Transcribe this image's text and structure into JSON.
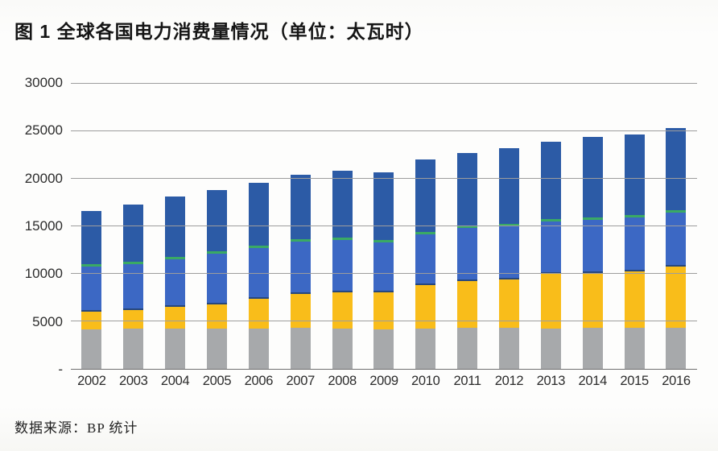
{
  "header": {
    "title": "图 1 全球各国电力消费量情况（单位：太瓦时）"
  },
  "footer": {
    "source": "数据来源：BP 统计"
  },
  "chart_data": {
    "type": "bar",
    "stacked": true,
    "title": "图 1 全球各国电力消费量情况",
    "unit": "太瓦时",
    "xlabel": "",
    "ylabel": "",
    "ylim": [
      0,
      30000
    ],
    "grid": true,
    "legend": "none",
    "categories": [
      "2002",
      "2003",
      "2004",
      "2005",
      "2006",
      "2007",
      "2008",
      "2009",
      "2010",
      "2011",
      "2012",
      "2013",
      "2014",
      "2015",
      "2016"
    ],
    "series": [
      {
        "name": "gray-bottom",
        "color": "#a7a9ab",
        "values": [
          4150,
          4250,
          4200,
          4250,
          4250,
          4300,
          4250,
          4100,
          4200,
          4300,
          4300,
          4250,
          4350,
          4350,
          4300
        ]
      },
      {
        "name": "yellow",
        "color": "#f9bd1a",
        "values": [
          1850,
          1950,
          2300,
          2550,
          3100,
          3600,
          3800,
          3950,
          4600,
          4950,
          5100,
          5700,
          5700,
          5850,
          6400
        ]
      },
      {
        "name": "medium-blue",
        "color": "#3c68c4",
        "values": [
          4750,
          4750,
          5000,
          5300,
          5350,
          5450,
          5450,
          5200,
          5300,
          5500,
          5600,
          5500,
          5550,
          5700,
          5700
        ]
      },
      {
        "name": "green-sliver",
        "color": "#3aaa64",
        "values": [
          150,
          150,
          150,
          150,
          150,
          150,
          150,
          150,
          150,
          150,
          150,
          150,
          150,
          150,
          150
        ]
      },
      {
        "name": "dark-blue-top",
        "color": "#2c5ba6",
        "values": [
          5550,
          6000,
          6300,
          6400,
          6600,
          6800,
          7050,
          7100,
          7650,
          7650,
          7900,
          8100,
          8450,
          8450,
          8600
        ]
      }
    ],
    "totals": [
      16450,
      17100,
      17950,
      18650,
      19450,
      20300,
      20700,
      20500,
      21900,
      22550,
      23050,
      23700,
      24200,
      24500,
      25150
    ],
    "y_ticks": [
      {
        "label": "30000",
        "value": 30000
      },
      {
        "label": "25000",
        "value": 25000
      },
      {
        "label": "20000",
        "value": 20000
      },
      {
        "label": "15000",
        "value": 15000
      },
      {
        "label": "10000",
        "value": 10000
      },
      {
        "label": "5000",
        "value": 5000
      },
      {
        "label": "-",
        "value": 0
      }
    ]
  }
}
